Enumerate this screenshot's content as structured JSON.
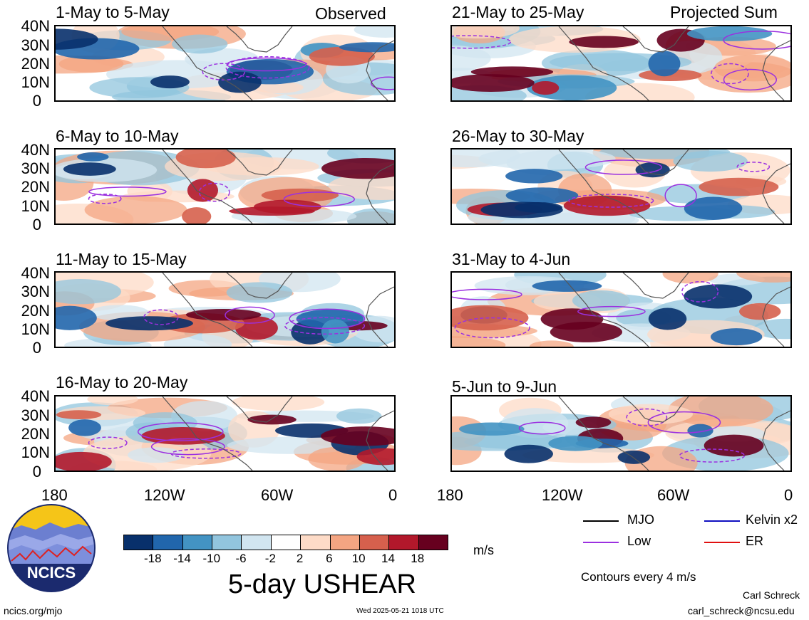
{
  "panels": [
    {
      "title": "1-May to 5-May",
      "corner": "Observed"
    },
    {
      "title": "21-May to 25-May",
      "corner": "Projected Sum"
    },
    {
      "title": "6-May to 10-May",
      "corner": ""
    },
    {
      "title": "26-May to 30-May",
      "corner": ""
    },
    {
      "title": "11-May to 15-May",
      "corner": ""
    },
    {
      "title": "31-May to 4-Jun",
      "corner": ""
    },
    {
      "title": "16-May to 20-May",
      "corner": ""
    },
    {
      "title": "5-Jun to 9-Jun",
      "corner": ""
    }
  ],
  "lat_labels": [
    "40N",
    "30N",
    "20N",
    "10N",
    "0"
  ],
  "lon_labels": [
    "180",
    "120W",
    "60W",
    "0"
  ],
  "colorbar": {
    "colors": [
      "#08306b",
      "#2166ac",
      "#4393c3",
      "#92c5de",
      "#d1e5f0",
      "#ffffff",
      "#fddbc7",
      "#f4a582",
      "#d6604d",
      "#b2182b",
      "#67001f"
    ],
    "labels": [
      "-18",
      "-14",
      "-10",
      "-6",
      "-2",
      "2",
      "6",
      "10",
      "14",
      "18"
    ],
    "units": "m/s"
  },
  "legend": {
    "mjo": {
      "label": "MJO",
      "color": "#000000"
    },
    "kelvin": {
      "label": "Kelvin x2",
      "color": "#1010c0"
    },
    "low": {
      "label": "Low",
      "color": "#9b30e0"
    },
    "er": {
      "label": "ER",
      "color": "#e01010"
    },
    "contours_note": "Contours every 4 m/s"
  },
  "title": "5-day USHEAR",
  "logo_text": "NCICS",
  "site": "ncics.org/mjo",
  "timestamp": "Wed 2025-05-21 1018 UTC",
  "author": "Carl Schreck",
  "email": "carl_schreck@ncsu.edu"
}
